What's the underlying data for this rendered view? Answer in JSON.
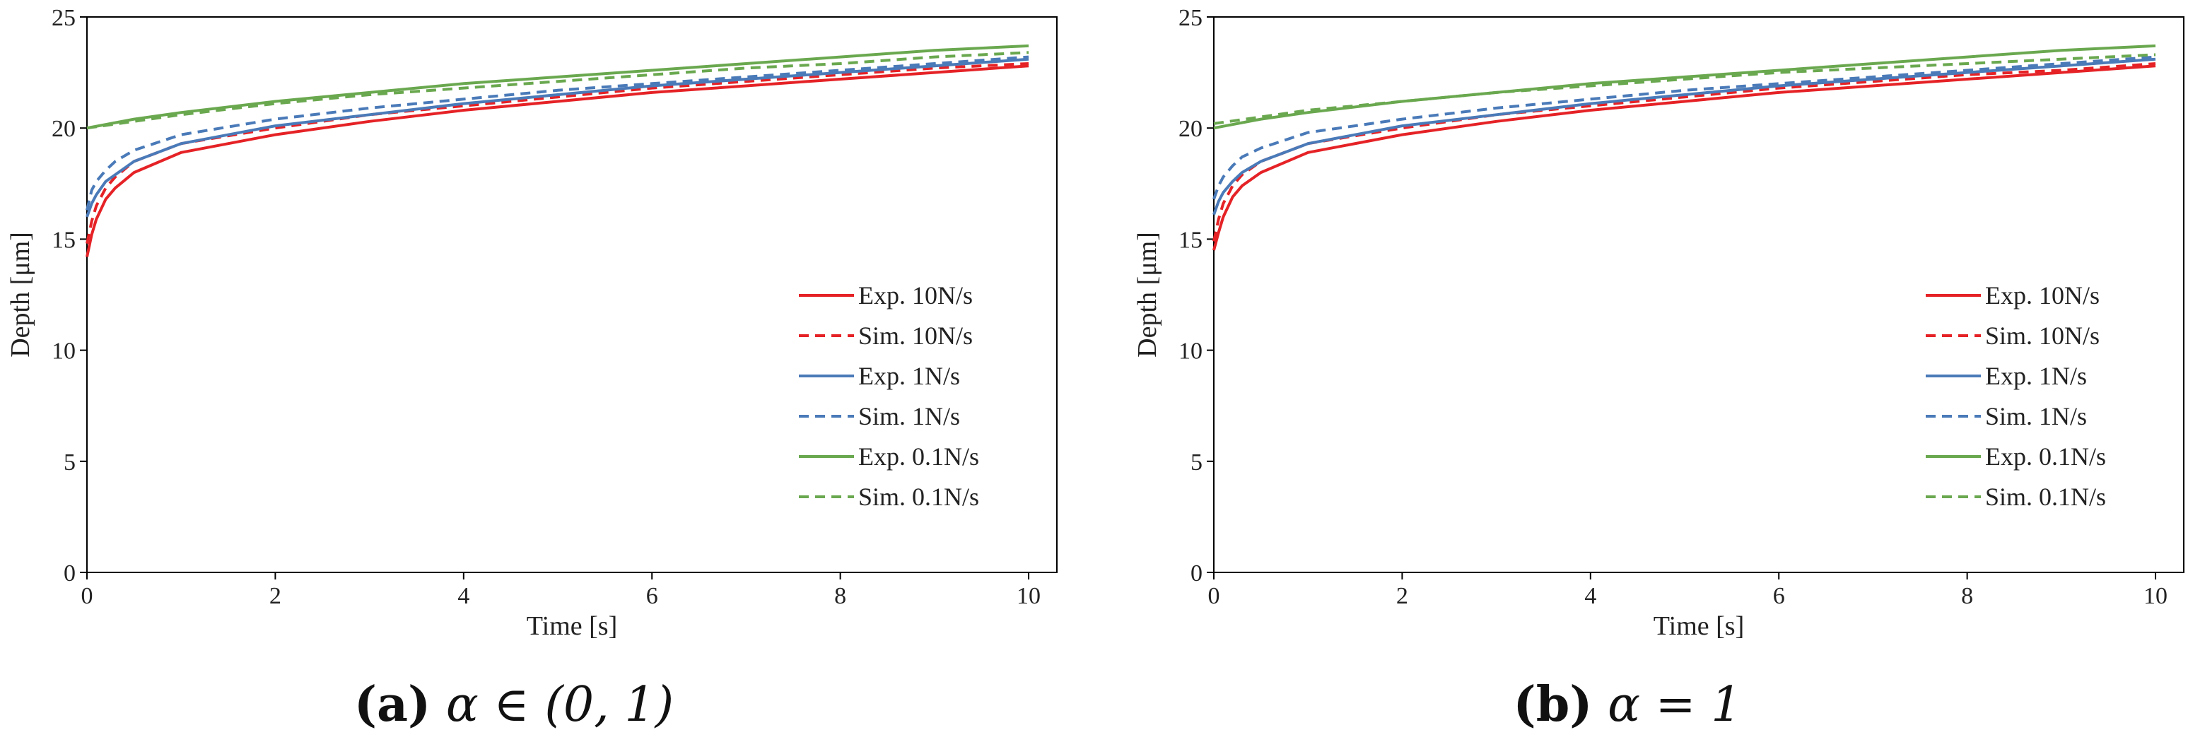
{
  "colors": {
    "exp10": "#e52226",
    "exp1": "#4a7ab8",
    "exp01": "#6aa84f",
    "axis": "#000000"
  },
  "chart_data": [
    {
      "type": "line",
      "caption": {
        "label": "(a)",
        "text": "α ∈ (0, 1)"
      },
      "xlabel": "Time [s]",
      "ylabel": "Depth [μm]",
      "xlim": [
        0,
        10.3
      ],
      "ylim": [
        0,
        25
      ],
      "xticks": [
        0,
        2,
        4,
        6,
        8,
        10
      ],
      "yticks": [
        0,
        5,
        10,
        15,
        20,
        25
      ],
      "grid": false,
      "legend_position": "bottom-right",
      "series": [
        {
          "name": "Exp. 10N/s",
          "style": "solid",
          "color": "exp10",
          "x": [
            0,
            0.05,
            0.1,
            0.2,
            0.3,
            0.5,
            1,
            2,
            3,
            4,
            5,
            6,
            7,
            8,
            9,
            10
          ],
          "y": [
            14.2,
            15.2,
            15.9,
            16.8,
            17.3,
            18.0,
            18.9,
            19.7,
            20.3,
            20.8,
            21.2,
            21.6,
            21.9,
            22.2,
            22.5,
            22.8
          ]
        },
        {
          "name": "Sim. 10N/s",
          "style": "dashed",
          "color": "exp10",
          "x": [
            0,
            0.05,
            0.1,
            0.2,
            0.3,
            0.5,
            1,
            2,
            3,
            4,
            5,
            6,
            7,
            8,
            9,
            10
          ],
          "y": [
            14.8,
            15.8,
            16.5,
            17.3,
            17.8,
            18.5,
            19.3,
            20.0,
            20.6,
            21.0,
            21.4,
            21.8,
            22.1,
            22.4,
            22.7,
            22.9
          ]
        },
        {
          "name": "Exp. 1N/s",
          "style": "solid",
          "color": "exp1",
          "x": [
            0,
            0.05,
            0.1,
            0.2,
            0.3,
            0.5,
            1,
            2,
            3,
            4,
            5,
            6,
            7,
            8,
            9,
            10
          ],
          "y": [
            16.0,
            16.6,
            17.0,
            17.6,
            17.9,
            18.5,
            19.3,
            20.1,
            20.6,
            21.1,
            21.5,
            21.9,
            22.2,
            22.5,
            22.8,
            23.1
          ]
        },
        {
          "name": "Sim. 1N/s",
          "style": "dashed",
          "color": "exp1",
          "x": [
            0,
            0.05,
            0.1,
            0.2,
            0.3,
            0.5,
            1,
            2,
            3,
            4,
            5,
            6,
            7,
            8,
            9,
            10
          ],
          "y": [
            16.3,
            17.2,
            17.6,
            18.1,
            18.5,
            19.0,
            19.7,
            20.4,
            20.9,
            21.3,
            21.7,
            22.0,
            22.3,
            22.6,
            22.9,
            23.2
          ]
        },
        {
          "name": "Exp. 0.1N/s",
          "style": "solid",
          "color": "exp01",
          "x": [
            0,
            0.5,
            1,
            2,
            3,
            4,
            5,
            6,
            7,
            8,
            9,
            10
          ],
          "y": [
            20.0,
            20.4,
            20.7,
            21.2,
            21.6,
            22.0,
            22.3,
            22.6,
            22.9,
            23.2,
            23.5,
            23.7
          ]
        },
        {
          "name": "Sim. 0.1N/s",
          "style": "dashed",
          "color": "exp01",
          "x": [
            0,
            0.5,
            1,
            2,
            3,
            4,
            5,
            6,
            7,
            8,
            9,
            10
          ],
          "y": [
            20.0,
            20.3,
            20.6,
            21.1,
            21.5,
            21.8,
            22.1,
            22.4,
            22.7,
            22.9,
            23.2,
            23.4
          ]
        }
      ]
    },
    {
      "type": "line",
      "caption": {
        "label": "(b)",
        "text": "α = 1"
      },
      "xlabel": "Time [s]",
      "ylabel": "Depth [μm]",
      "xlim": [
        0,
        10.3
      ],
      "ylim": [
        0,
        25
      ],
      "xticks": [
        0,
        2,
        4,
        6,
        8,
        10
      ],
      "yticks": [
        0,
        5,
        10,
        15,
        20,
        25
      ],
      "grid": false,
      "legend_position": "bottom-right",
      "series": [
        {
          "name": "Exp. 10N/s",
          "style": "solid",
          "color": "exp10",
          "x": [
            0,
            0.05,
            0.1,
            0.2,
            0.3,
            0.5,
            1,
            2,
            3,
            4,
            5,
            6,
            7,
            8,
            9,
            10
          ],
          "y": [
            14.5,
            15.3,
            16.0,
            16.9,
            17.4,
            18.0,
            18.9,
            19.7,
            20.3,
            20.8,
            21.2,
            21.6,
            21.9,
            22.2,
            22.5,
            22.8
          ]
        },
        {
          "name": "Sim. 10N/s",
          "style": "dashed",
          "color": "exp10",
          "x": [
            0,
            0.05,
            0.1,
            0.2,
            0.3,
            0.5,
            1,
            2,
            3,
            4,
            5,
            6,
            7,
            8,
            9,
            10
          ],
          "y": [
            14.9,
            15.9,
            16.6,
            17.4,
            17.9,
            18.5,
            19.3,
            20.0,
            20.6,
            21.0,
            21.4,
            21.8,
            22.1,
            22.4,
            22.6,
            22.9
          ]
        },
        {
          "name": "Exp. 1N/s",
          "style": "solid",
          "color": "exp1",
          "x": [
            0,
            0.05,
            0.1,
            0.2,
            0.3,
            0.5,
            1,
            2,
            3,
            4,
            5,
            6,
            7,
            8,
            9,
            10
          ],
          "y": [
            16.1,
            16.7,
            17.1,
            17.6,
            18.0,
            18.5,
            19.3,
            20.1,
            20.6,
            21.1,
            21.5,
            21.9,
            22.2,
            22.5,
            22.8,
            23.1
          ]
        },
        {
          "name": "Sim. 1N/s",
          "style": "dashed",
          "color": "exp1",
          "x": [
            0,
            0.05,
            0.1,
            0.2,
            0.3,
            0.5,
            1,
            2,
            3,
            4,
            5,
            6,
            7,
            8,
            9,
            10
          ],
          "y": [
            16.8,
            17.4,
            17.8,
            18.3,
            18.7,
            19.1,
            19.8,
            20.4,
            20.9,
            21.3,
            21.7,
            22.0,
            22.3,
            22.6,
            22.9,
            23.2
          ]
        },
        {
          "name": "Exp. 0.1N/s",
          "style": "solid",
          "color": "exp01",
          "x": [
            0,
            0.5,
            1,
            2,
            3,
            4,
            5,
            6,
            7,
            8,
            9,
            10
          ],
          "y": [
            20.0,
            20.4,
            20.7,
            21.2,
            21.6,
            22.0,
            22.3,
            22.6,
            22.9,
            23.2,
            23.5,
            23.7
          ]
        },
        {
          "name": "Sim. 0.1N/s",
          "style": "dashed",
          "color": "exp01",
          "x": [
            0,
            0.5,
            1,
            2,
            3,
            4,
            5,
            6,
            7,
            8,
            9,
            10
          ],
          "y": [
            20.2,
            20.5,
            20.8,
            21.2,
            21.6,
            21.9,
            22.2,
            22.5,
            22.7,
            22.9,
            23.1,
            23.3
          ]
        }
      ]
    }
  ]
}
